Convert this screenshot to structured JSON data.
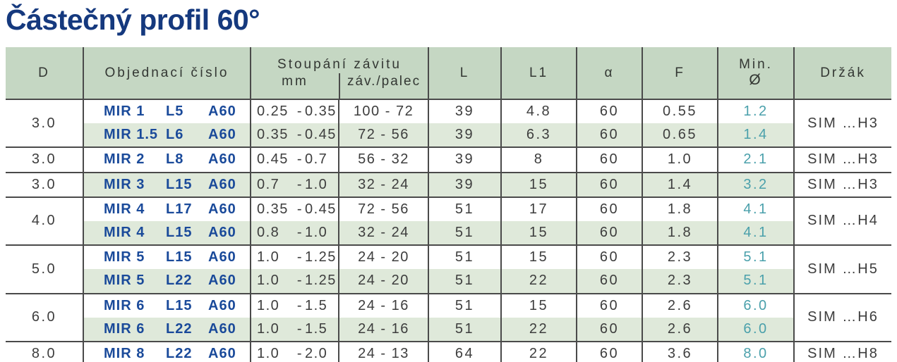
{
  "title": "Částečný profil 60°",
  "colors": {
    "title_blue": "#15397e",
    "code_blue": "#1a4a9a",
    "header_green": "#c5d7c3",
    "row_green": "#dfe9da",
    "min_teal": "#4aa0ab"
  },
  "table": {
    "headers": {
      "d": "D",
      "order": "Objednací číslo",
      "pitch_group": "Stoupání závitu",
      "pitch_mm": "mm",
      "pitch_tpi": "záv./palec",
      "l": "L",
      "l1": "L1",
      "alpha": "α",
      "f": "F",
      "min_line1": "Min.",
      "min_line2": "Ø",
      "holder": "Držák"
    },
    "range_separator": "-",
    "rows": [
      {
        "d": "3.0",
        "mir": "MIR 1",
        "lcode": "L5",
        "acode": "A60",
        "mm_min": "0.25",
        "mm_max": "0.35",
        "tpi": "100 - 72",
        "l": "39",
        "l1": "4.8",
        "alpha": "60",
        "f": "0.55",
        "min_d": "1.2",
        "holder": "SIM …H3"
      },
      {
        "mir": "MIR 1.5",
        "lcode": "L6",
        "acode": "A60",
        "mm_min": "0.35",
        "mm_max": "0.45",
        "tpi": "72 - 56",
        "l": "39",
        "l1": "6.3",
        "alpha": "60",
        "f": "0.65",
        "min_d": "1.4"
      },
      {
        "d": "3.0",
        "mir": "MIR 2",
        "lcode": "L8",
        "acode": "A60",
        "mm_min": "0.45",
        "mm_max": "0.7",
        "tpi": "56 - 32",
        "l": "39",
        "l1": "8",
        "alpha": "60",
        "f": "1.0",
        "min_d": "2.1",
        "holder": "SIM …H3"
      },
      {
        "d": "3.0",
        "mir": "MIR 3",
        "lcode": "L15",
        "acode": "A60",
        "mm_min": "0.7",
        "mm_max": "1.0",
        "tpi": "32 - 24",
        "l": "39",
        "l1": "15",
        "alpha": "60",
        "f": "1.4",
        "min_d": "3.2",
        "holder": "SIM …H3"
      },
      {
        "d": "4.0",
        "mir": "MIR 4",
        "lcode": "L17",
        "acode": "A60",
        "mm_min": "0.35",
        "mm_max": "0.45",
        "tpi": "72 - 56",
        "l": "51",
        "l1": "17",
        "alpha": "60",
        "f": "1.8",
        "min_d": "4.1",
        "holder": "SIM …H4"
      },
      {
        "mir": "MIR 4",
        "lcode": "L15",
        "acode": "A60",
        "mm_min": "0.8",
        "mm_max": "1.0",
        "tpi": "32 - 24",
        "l": "51",
        "l1": "15",
        "alpha": "60",
        "f": "1.8",
        "min_d": "4.1"
      },
      {
        "d": "5.0",
        "mir": "MIR 5",
        "lcode": "L15",
        "acode": "A60",
        "mm_min": "1.0",
        "mm_max": "1.25",
        "tpi": "24 - 20",
        "l": "51",
        "l1": "15",
        "alpha": "60",
        "f": "2.3",
        "min_d": "5.1",
        "holder": "SIM …H5"
      },
      {
        "mir": "MIR 5",
        "lcode": "L22",
        "acode": "A60",
        "mm_min": "1.0",
        "mm_max": "1.25",
        "tpi": "24 - 20",
        "l": "51",
        "l1": "22",
        "alpha": "60",
        "f": "2.3",
        "min_d": "5.1"
      },
      {
        "d": "6.0",
        "mir": "MIR 6",
        "lcode": "L15",
        "acode": "A60",
        "mm_min": "1.0",
        "mm_max": "1.5",
        "tpi": "24 - 16",
        "l": "51",
        "l1": "15",
        "alpha": "60",
        "f": "2.6",
        "min_d": "6.0",
        "holder": "SIM …H6"
      },
      {
        "mir": "MIR 6",
        "lcode": "L22",
        "acode": "A60",
        "mm_min": "1.0",
        "mm_max": "1.5",
        "tpi": "24 - 16",
        "l": "51",
        "l1": "22",
        "alpha": "60",
        "f": "2.6",
        "min_d": "6.0"
      },
      {
        "d": "8.0",
        "mir": "MIR 8",
        "lcode": "L22",
        "acode": "A60",
        "mm_min": "1.0",
        "mm_max": "2.0",
        "tpi": "24 - 13",
        "l": "64",
        "l1": "22",
        "alpha": "60",
        "f": "3.6",
        "min_d": "8.0",
        "holder": "SIM …H8"
      }
    ]
  }
}
